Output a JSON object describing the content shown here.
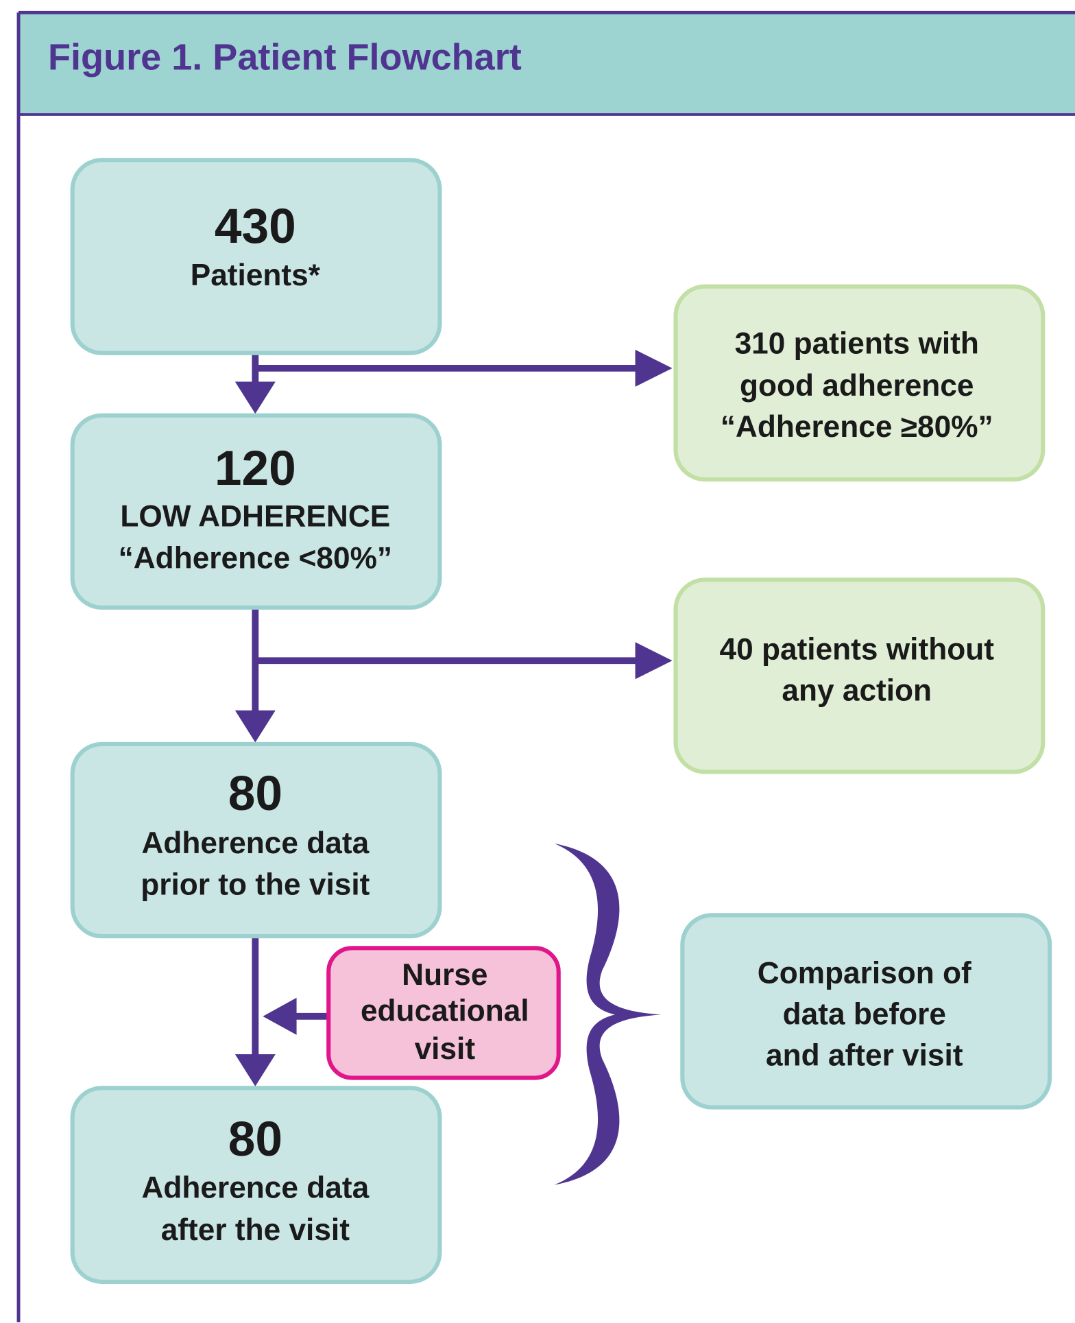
{
  "title": "Figure 1. Patient Flowchart",
  "nodes": [
    {
      "lines": [
        "430",
        "Patients*"
      ]
    },
    {
      "lines": [
        "120",
        "LOW ADHERENCE",
        "“Adherence <80%”"
      ]
    },
    {
      "lines": [
        "310 patients with",
        "good adherence",
        "“Adherence ≥80%”"
      ]
    },
    {
      "lines": [
        "40 patients without",
        "any action"
      ]
    },
    {
      "lines": [
        "80",
        "Adherence data",
        "prior to the visit"
      ]
    },
    {
      "lines": [
        "Nurse",
        "educational",
        "visit"
      ]
    },
    {
      "lines": [
        "80",
        "Adherence data",
        "after the visit"
      ]
    },
    {
      "lines": [
        "Comparison of",
        "data before",
        "and after visit"
      ]
    }
  ]
}
